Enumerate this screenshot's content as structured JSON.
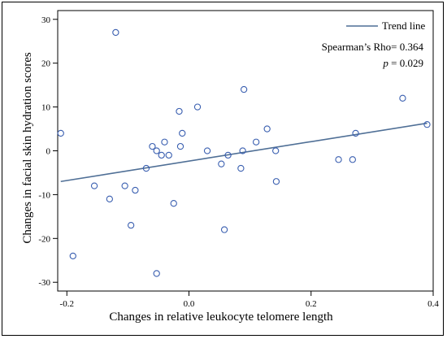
{
  "chart_data": {
    "type": "scatter",
    "title": "",
    "xlabel": "Changes in relative leukocyte telomere length",
    "ylabel": "Changes in facial skin hydration scores",
    "xlim": [
      -0.215,
      0.4
    ],
    "ylim": [
      -32,
      32
    ],
    "xticks": [
      -0.2,
      0.0,
      0.2,
      0.4
    ],
    "xtick_labels": [
      "-0.2",
      "0.0",
      "0.2",
      "0.4"
    ],
    "yticks": [
      -30,
      -20,
      -10,
      0,
      10,
      20,
      30
    ],
    "ytick_labels": [
      "-30",
      "-20",
      "-10",
      "0",
      "10",
      "20",
      "30"
    ],
    "grid": false,
    "legend": {
      "position": "top-right",
      "entries": [
        {
          "label": "Trend line",
          "marker": "line",
          "color": "#4f6f96"
        }
      ]
    },
    "annotations": {
      "spearman": "Spearman’s Rho= 0.364",
      "p_label": "p",
      "p_value": " = 0.029"
    },
    "point_color": "#3a5fb0",
    "series": [
      {
        "points": [
          [
            -0.21,
            4
          ],
          [
            -0.19,
            -24
          ],
          [
            -0.155,
            -8
          ],
          [
            -0.13,
            -11
          ],
          [
            -0.12,
            27
          ],
          [
            -0.105,
            -8
          ],
          [
            -0.095,
            -17
          ],
          [
            -0.088,
            -9
          ],
          [
            -0.07,
            -4
          ],
          [
            -0.06,
            1
          ],
          [
            -0.053,
            0
          ],
          [
            -0.053,
            -28
          ],
          [
            -0.045,
            -1
          ],
          [
            -0.04,
            2
          ],
          [
            -0.033,
            -1
          ],
          [
            -0.025,
            -12
          ],
          [
            -0.016,
            9
          ],
          [
            -0.014,
            1
          ],
          [
            -0.011,
            4
          ],
          [
            0.014,
            10
          ],
          [
            0.03,
            0
          ],
          [
            0.053,
            -3
          ],
          [
            0.058,
            -18
          ],
          [
            0.064,
            -1
          ],
          [
            0.085,
            -4
          ],
          [
            0.088,
            0
          ],
          [
            0.09,
            14
          ],
          [
            0.11,
            2
          ],
          [
            0.128,
            5
          ],
          [
            0.142,
            0
          ],
          [
            0.143,
            -7
          ],
          [
            0.245,
            -2
          ],
          [
            0.268,
            -2
          ],
          [
            0.273,
            4
          ],
          [
            0.35,
            12
          ],
          [
            0.39,
            6
          ]
        ]
      }
    ],
    "trend_line": {
      "color": "#4f6f96",
      "x": [
        -0.21,
        0.39
      ],
      "y": [
        -7.0,
        6.3
      ]
    }
  }
}
